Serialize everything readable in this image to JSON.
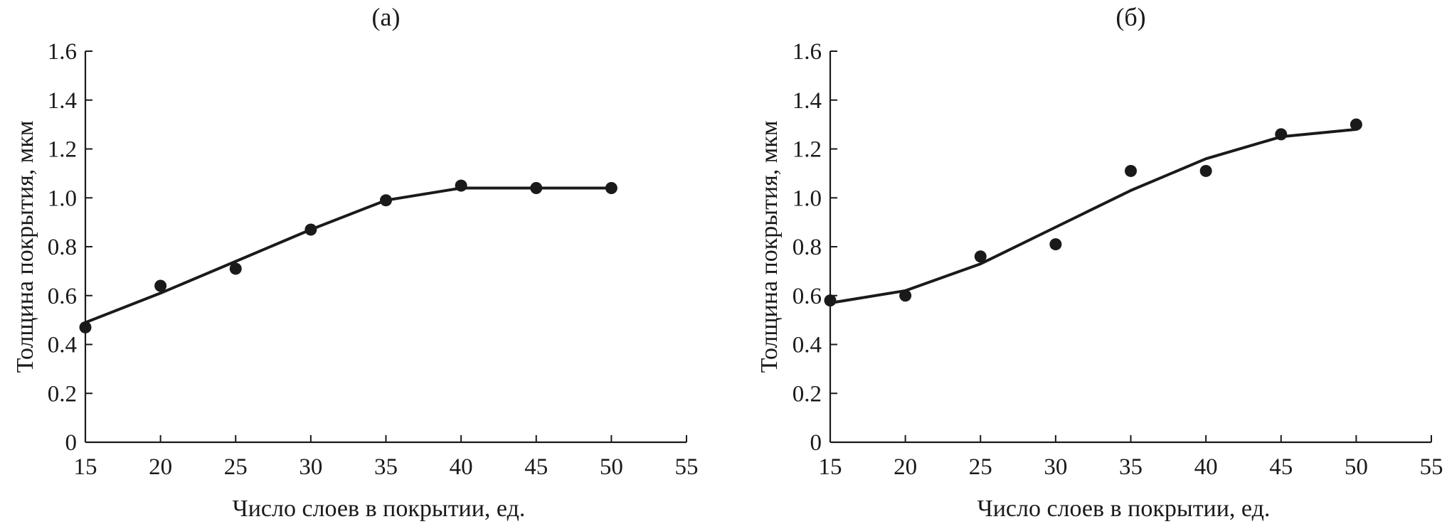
{
  "chart_data": [
    {
      "type": "scatter",
      "title": "(а)",
      "xlabel": "Число слоев в покрытии, ед.",
      "ylabel": "Толщина покрытия, мкм",
      "xlim": [
        15,
        55
      ],
      "ylim": [
        0,
        1.6
      ],
      "xticks": [
        "15",
        "20",
        "25",
        "30",
        "35",
        "40",
        "45",
        "50",
        "55"
      ],
      "yticks": [
        "0",
        "0.2",
        "0.4",
        "0.6",
        "0.8",
        "1.0",
        "1.2",
        "1.4",
        "1.6"
      ],
      "grid": false,
      "series": [
        {
          "kind": "points",
          "x": [
            15,
            20,
            25,
            30,
            35,
            40,
            45,
            50
          ],
          "y": [
            0.47,
            0.64,
            0.71,
            0.87,
            0.99,
            1.05,
            1.04,
            1.04
          ]
        },
        {
          "kind": "line",
          "x": [
            15,
            20,
            25,
            30,
            35,
            40,
            45,
            50
          ],
          "y": [
            0.49,
            0.61,
            0.74,
            0.87,
            0.99,
            1.04,
            1.04,
            1.04
          ]
        }
      ]
    },
    {
      "type": "scatter",
      "title": "(б)",
      "xlabel": "Число слоев в покрытии, ед.",
      "ylabel": "Толщина покрытия, мкм",
      "xlim": [
        15,
        55
      ],
      "ylim": [
        0,
        1.6
      ],
      "xticks": [
        "15",
        "20",
        "25",
        "30",
        "35",
        "40",
        "45",
        "50",
        "55"
      ],
      "yticks": [
        "0",
        "0.2",
        "0.4",
        "0.6",
        "0.8",
        "1.0",
        "1.2",
        "1.4",
        "1.6"
      ],
      "grid": false,
      "series": [
        {
          "kind": "points",
          "x": [
            15,
            20,
            25,
            30,
            35,
            40,
            45,
            50
          ],
          "y": [
            0.58,
            0.6,
            0.76,
            0.81,
            1.11,
            1.11,
            1.26,
            1.3
          ]
        },
        {
          "kind": "line",
          "x": [
            15,
            20,
            25,
            30,
            35,
            40,
            45,
            50
          ],
          "y": [
            0.57,
            0.62,
            0.73,
            0.88,
            1.03,
            1.16,
            1.25,
            1.28
          ]
        }
      ]
    }
  ]
}
